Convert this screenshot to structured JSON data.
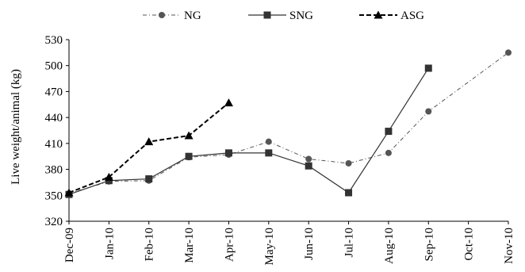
{
  "chart_data": {
    "type": "line",
    "title": "",
    "xlabel": "",
    "ylabel": "Live weight/animal (kg)",
    "categories": [
      "Dec-09",
      "Jan-10",
      "Feb-10",
      "Mar-10",
      "Apr-10",
      "May-10",
      "Jun-10",
      "Jul-10",
      "Aug-10",
      "Sep-10",
      "Oct-10",
      "Nov-10"
    ],
    "ylim": [
      320,
      530
    ],
    "yticks": [
      320,
      350,
      380,
      410,
      440,
      470,
      500,
      530
    ],
    "grid": false,
    "legend_position": "top",
    "series": [
      {
        "name": "NG",
        "style": "dash-dot",
        "marker": "circle",
        "color": "#555555",
        "values": [
          352,
          366,
          367,
          394,
          397,
          412,
          392,
          387,
          399,
          447,
          null,
          515
        ]
      },
      {
        "name": "SNG",
        "style": "solid",
        "marker": "square",
        "color": "#333333",
        "values": [
          351,
          367,
          369,
          395,
          399,
          399,
          384,
          353,
          424,
          497,
          null,
          null
        ]
      },
      {
        "name": "ASG",
        "style": "dashed",
        "marker": "triangle",
        "color": "#000000",
        "values": [
          353,
          371,
          412,
          419,
          457,
          null,
          null,
          null,
          null,
          null,
          null,
          null
        ]
      }
    ]
  }
}
